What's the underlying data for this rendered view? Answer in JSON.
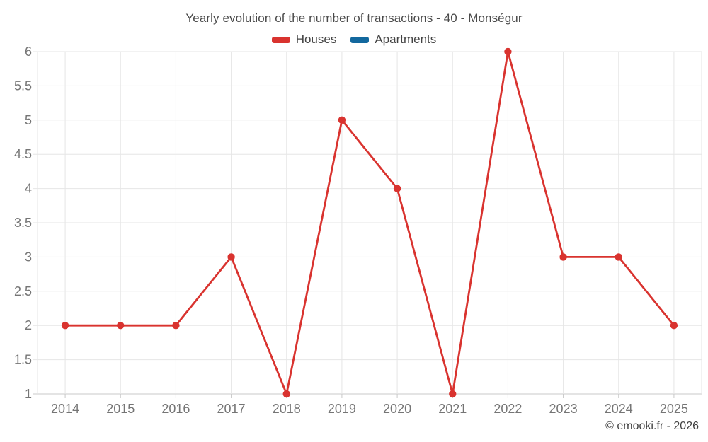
{
  "title": "Yearly evolution of the number of transactions - 40 - Monségur",
  "copyright": "© emooki.fr - 2026",
  "colors": {
    "houses": "#d9332f",
    "apartments": "#13689e",
    "gridline": "#e6e6e6",
    "axis_line": "#c8c8c8",
    "tick_label": "#757575",
    "title_text": "#4a4a4a",
    "background": "#ffffff"
  },
  "legend": [
    {
      "label": "Houses",
      "color": "#d9332f",
      "series_key": "houses"
    },
    {
      "label": "Apartments",
      "color": "#13689e",
      "series_key": "apartments"
    }
  ],
  "chart_data": {
    "type": "line",
    "title": "Yearly evolution of the number of transactions - 40 - Monségur",
    "x": [
      2014,
      2015,
      2016,
      2017,
      2018,
      2019,
      2020,
      2021,
      2022,
      2023,
      2024,
      2025
    ],
    "series": [
      {
        "name": "Houses",
        "color": "#d9332f",
        "values": [
          2,
          2,
          2,
          3,
          1,
          5,
          4,
          1,
          6,
          3,
          3,
          2
        ]
      },
      {
        "name": "Apartments",
        "color": "#13689e",
        "values": []
      }
    ],
    "xlabel": "",
    "ylabel": "",
    "ylim": [
      1,
      6
    ],
    "ytick_step": 0.5,
    "grid": true,
    "legend_position": "top",
    "marker": "circle"
  }
}
